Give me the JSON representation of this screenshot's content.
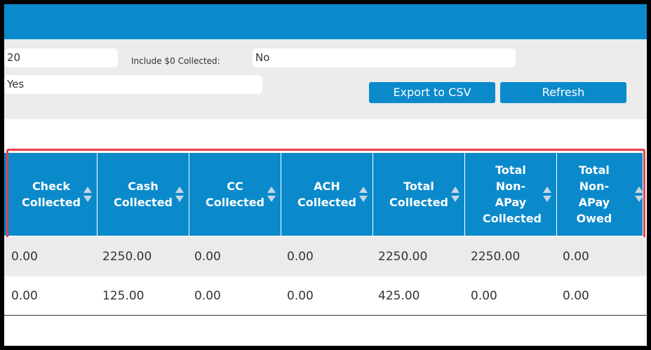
{
  "filters": {
    "field1_value": "20",
    "include_zero_label": "Include $0 Collected:",
    "include_zero_value": "No",
    "field2_value": "Yes"
  },
  "buttons": {
    "export_label": "Export to CSV",
    "refresh_label": "Refresh"
  },
  "table": {
    "headers": [
      {
        "label": "Check Collected"
      },
      {
        "label": "Cash Collected"
      },
      {
        "label": "CC Collected"
      },
      {
        "label": "ACH Collected"
      },
      {
        "label": "Total Collected"
      },
      {
        "label": "Total Non-APay Collected"
      },
      {
        "label": "Total Non-APay Owed"
      }
    ],
    "rows": [
      [
        "0.00",
        "2250.00",
        "0.00",
        "0.00",
        "2250.00",
        "2250.00",
        "0.00"
      ],
      [
        "0.00",
        "125.00",
        "0.00",
        "0.00",
        "425.00",
        "0.00",
        "0.00"
      ]
    ]
  },
  "colors": {
    "accent": "#0a8acb",
    "highlight": "#e83f4a"
  }
}
